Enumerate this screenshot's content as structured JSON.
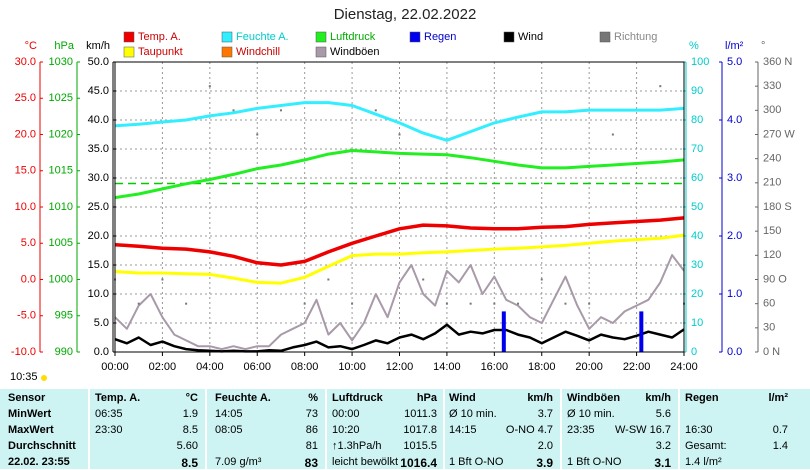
{
  "chart_data": {
    "type": "line",
    "title": "Dienstag, 22.02.2022",
    "xlim": [
      0,
      24
    ],
    "xticks": [
      {
        "value": 0,
        "label": "00:00"
      },
      {
        "value": 2,
        "label": "02:00"
      },
      {
        "value": 4,
        "label": "04:00"
      },
      {
        "value": 6,
        "label": "06:00"
      },
      {
        "value": 8,
        "label": "08:00"
      },
      {
        "value": 10,
        "label": "10:00"
      },
      {
        "value": 12,
        "label": "12:00"
      },
      {
        "value": 14,
        "label": "14:00"
      },
      {
        "value": 16,
        "label": "16:00"
      },
      {
        "value": 18,
        "label": "18:00"
      },
      {
        "value": 20,
        "label": "20:00"
      },
      {
        "value": 22,
        "label": "22:00"
      },
      {
        "value": 24,
        "label": "24:00"
      }
    ],
    "grid": true,
    "grid_axis": "kmh",
    "axes": [
      {
        "id": "temp",
        "side": "left",
        "unit": "°C",
        "color": "#ee0000",
        "lim": [
          -10,
          30
        ],
        "ticks": [
          {
            "value": -10,
            "label": "-10.0"
          },
          {
            "value": -5,
            "label": "-5.0"
          },
          {
            "value": 0,
            "label": "0.0"
          },
          {
            "value": 5,
            "label": "5.0"
          },
          {
            "value": 10,
            "label": "10.0"
          },
          {
            "value": 15,
            "label": "15.0"
          },
          {
            "value": 20,
            "label": "20.0"
          },
          {
            "value": 25,
            "label": "25.0"
          },
          {
            "value": 30,
            "label": "30.0"
          }
        ]
      },
      {
        "id": "hpa",
        "side": "left",
        "unit": "hPa",
        "color": "#00aa00",
        "lim": [
          990,
          1030
        ],
        "ticks": [
          990,
          995,
          1000,
          1005,
          1010,
          1015,
          1020,
          1025,
          1030
        ]
      },
      {
        "id": "kmh",
        "side": "left",
        "unit": "km/h",
        "color": "#000000",
        "lim": [
          0,
          50
        ],
        "ticks": [
          {
            "value": 0,
            "label": "0.0"
          },
          {
            "value": 5,
            "label": "5.0"
          },
          {
            "value": 10,
            "label": "10.0"
          },
          {
            "value": 15,
            "label": "15.0"
          },
          {
            "value": 20,
            "label": "20.0"
          },
          {
            "value": 25,
            "label": "25.0"
          },
          {
            "value": 30,
            "label": "30.0"
          },
          {
            "value": 35,
            "label": "35.0"
          },
          {
            "value": 40,
            "label": "40.0"
          },
          {
            "value": 45,
            "label": "45.0"
          },
          {
            "value": 50,
            "label": "50.0"
          }
        ]
      },
      {
        "id": "pct",
        "side": "right",
        "unit": "%",
        "color": "#00cccc",
        "lim": [
          0,
          100
        ],
        "ticks": [
          0,
          10,
          20,
          30,
          40,
          50,
          60,
          70,
          80,
          90,
          100
        ]
      },
      {
        "id": "rain",
        "side": "right",
        "unit": "l/m²",
        "color": "#0000cc",
        "lim": [
          0,
          5
        ],
        "ticks": [
          {
            "value": 0,
            "label": "0.0"
          },
          {
            "value": 1,
            "label": "1.0"
          },
          {
            "value": 2,
            "label": "2.0"
          },
          {
            "value": 3,
            "label": "3.0"
          },
          {
            "value": 4,
            "label": "4.0"
          },
          {
            "value": 5,
            "label": "5.0"
          }
        ]
      },
      {
        "id": "dir",
        "side": "right",
        "unit": "°",
        "color": "#666666",
        "lim": [
          0,
          360
        ],
        "ticks": [
          {
            "value": 0,
            "label": "0 N"
          },
          30,
          60,
          {
            "value": 90,
            "label": "90 O"
          },
          120,
          150,
          {
            "value": 180,
            "label": "180 S"
          },
          210,
          240,
          {
            "value": 270,
            "label": "270 W"
          },
          300,
          330,
          {
            "value": 360,
            "label": "360 N"
          }
        ]
      }
    ],
    "reference_lines": [
      {
        "axis": "hpa",
        "value": 1013.25,
        "color": "#00cc00"
      }
    ],
    "series": [
      {
        "name": "Temp. A.",
        "color": "#ee0000",
        "label_color": "#cc0000",
        "axis": "temp",
        "style": "line",
        "width": 3.5,
        "x": [
          0,
          1,
          2,
          3,
          4,
          5,
          6,
          7,
          8,
          9,
          10,
          11,
          12,
          13,
          14,
          15,
          16,
          17,
          18,
          19,
          20,
          21,
          22,
          23,
          24
        ],
        "values": [
          4.8,
          4.6,
          4.3,
          4.2,
          3.8,
          3.2,
          2.3,
          2.0,
          2.5,
          3.8,
          5.0,
          6.0,
          7.0,
          7.5,
          7.4,
          7.1,
          7.0,
          7.0,
          7.2,
          7.3,
          7.6,
          7.8,
          8.0,
          8.2,
          8.5
        ]
      },
      {
        "name": "Feuchte A.",
        "color": "#33eeff",
        "label_color": "#00cccc",
        "axis": "pct",
        "style": "line",
        "width": 3,
        "x": [
          0,
          1,
          2,
          3,
          4,
          5,
          6,
          7,
          8,
          9,
          10,
          11,
          12,
          13,
          14,
          15,
          16,
          17,
          18,
          19,
          20,
          21,
          22,
          23,
          24
        ],
        "values": [
          78,
          78.5,
          79.3,
          80,
          81.4,
          82.5,
          84,
          85,
          86,
          86,
          85,
          82,
          79,
          75.5,
          73,
          76,
          79,
          81,
          82.8,
          82.8,
          83.4,
          83.4,
          83.4,
          83.4,
          84
        ]
      },
      {
        "name": "Luftdruck",
        "color": "#22ee22",
        "label_color": "#00aa00",
        "axis": "hpa",
        "style": "line",
        "width": 3,
        "x": [
          0,
          1,
          2,
          3,
          4,
          5,
          6,
          7,
          8,
          9,
          10,
          11,
          12,
          13,
          14,
          15,
          16,
          17,
          18,
          19,
          20,
          21,
          22,
          23,
          24
        ],
        "values": [
          1011.3,
          1011.8,
          1012.5,
          1013.2,
          1013.8,
          1014.5,
          1015.3,
          1015.8,
          1016.5,
          1017.3,
          1017.8,
          1017.6,
          1017.4,
          1017.3,
          1017.2,
          1016.8,
          1016.3,
          1015.8,
          1015.4,
          1015.4,
          1015.6,
          1015.8,
          1016.0,
          1016.2,
          1016.5
        ]
      },
      {
        "name": "Regen",
        "color": "#0000ee",
        "label_color": "#0000cc",
        "axis": "rain",
        "style": "bar",
        "width": 4,
        "x": [
          16.4,
          22.2
        ],
        "values": [
          0.7,
          0.7
        ]
      },
      {
        "name": "Wind",
        "color": "#000000",
        "label_color": "#000000",
        "axis": "kmh",
        "style": "line",
        "width": 2.5,
        "x": [
          0,
          0.5,
          1,
          1.5,
          2,
          2.5,
          3,
          3.5,
          4,
          4.5,
          5,
          5.5,
          6,
          6.5,
          7,
          7.5,
          8,
          8.5,
          9,
          9.5,
          10,
          10.5,
          11,
          11.5,
          12,
          12.5,
          13,
          13.5,
          14,
          14.5,
          15,
          15.5,
          16,
          16.5,
          17,
          17.5,
          18,
          18.5,
          19,
          19.5,
          20,
          20.5,
          21,
          21.5,
          22,
          22.5,
          23,
          23.5,
          24
        ],
        "values": [
          2.2,
          1.5,
          2.5,
          1.2,
          1.8,
          1.0,
          0.5,
          0.3,
          0.2,
          0.1,
          0.2,
          0.1,
          0.1,
          0.3,
          0.2,
          0.8,
          1.2,
          1.8,
          0.8,
          1.0,
          0.5,
          1.2,
          2.0,
          1.5,
          2.5,
          3.0,
          2.2,
          3.2,
          4.7,
          3.0,
          3.5,
          3.2,
          3.8,
          3.8,
          3.0,
          2.5,
          1.5,
          2.5,
          3.5,
          2.8,
          2.0,
          3.0,
          2.5,
          2.2,
          2.8,
          3.5,
          3.0,
          2.5,
          3.9
        ]
      },
      {
        "name": "Richtung",
        "color": "#777777",
        "label_color": "#888888",
        "axis": "dir",
        "style": "dots",
        "width": 2,
        "x": [
          0,
          1,
          2,
          3,
          4,
          5,
          6,
          7,
          8,
          9,
          10,
          11,
          12,
          13,
          14,
          15,
          16,
          17,
          18,
          19,
          20,
          21,
          22,
          23,
          24
        ],
        "values": [
          90,
          60,
          90,
          60,
          330,
          300,
          270,
          300,
          60,
          90,
          60,
          300,
          270,
          90,
          60,
          60,
          60,
          60,
          90,
          60,
          60,
          270,
          300,
          330,
          60
        ]
      },
      {
        "name": "Taupunkt",
        "color": "#ffff00",
        "label_color": "#cc0000",
        "axis": "temp",
        "style": "line",
        "width": 3,
        "x": [
          0,
          1,
          2,
          3,
          4,
          5,
          6,
          7,
          8,
          9,
          10,
          11,
          12,
          13,
          14,
          15,
          16,
          17,
          18,
          19,
          20,
          21,
          22,
          23,
          24
        ],
        "values": [
          1.1,
          0.9,
          0.9,
          0.8,
          0.7,
          0.2,
          -0.4,
          -0.5,
          0.3,
          1.8,
          3.3,
          3.5,
          3.5,
          3.7,
          3.8,
          4.0,
          4.2,
          4.3,
          4.5,
          4.7,
          5.0,
          5.3,
          5.5,
          5.7,
          6.1
        ]
      },
      {
        "name": "Windchill",
        "color": "#ff7700",
        "label_color": "#cc0000",
        "axis": "temp",
        "style": "line",
        "width": 2
      },
      {
        "name": "Windböen",
        "color": "#a89aa8",
        "label_color": "#000000",
        "axis": "kmh",
        "style": "line",
        "width": 2,
        "x": [
          0,
          0.5,
          1,
          1.5,
          2,
          2.5,
          3,
          3.5,
          4,
          4.5,
          5,
          5.5,
          6,
          6.5,
          7,
          7.5,
          8,
          8.5,
          9,
          9.5,
          10,
          10.5,
          11,
          11.5,
          12,
          12.5,
          13,
          13.5,
          14,
          14.5,
          15,
          15.5,
          16,
          16.5,
          17,
          17.5,
          18,
          18.5,
          19,
          19.5,
          20,
          20.5,
          21,
          21.5,
          22,
          22.5,
          23,
          23.5,
          24
        ],
        "values": [
          6,
          4,
          8,
          10,
          6,
          3,
          2,
          1,
          1,
          0.5,
          1,
          0.5,
          1,
          1,
          3,
          4,
          5,
          9,
          3,
          5,
          2,
          5,
          10,
          6,
          12,
          15,
          10,
          8,
          14,
          12,
          15,
          10,
          13,
          9,
          8,
          6,
          5,
          9,
          13,
          8,
          4,
          6,
          5,
          7,
          8,
          9,
          12,
          16.7,
          14
        ]
      }
    ]
  },
  "time": "10:35",
  "table": {
    "header": [
      "Sensor",
      "Temp. A.",
      "°C",
      "Feuchte A.",
      "%",
      "Luftdruck",
      "hPa",
      "Wind",
      "km/h",
      "Windböen",
      "km/h",
      "Regen",
      "l/m²"
    ],
    "rows": [
      [
        "MinWert",
        "06:35",
        "1.9",
        "14:05",
        "73",
        "00:00",
        "1011.3",
        "Ø 10 min.",
        "3.7",
        "Ø 10 min.",
        "5.6",
        null,
        null
      ],
      [
        "MaxWert",
        "23:30",
        "8.5",
        "08:05",
        "86",
        "10:20",
        "1017.8",
        "14:15",
        "O-NO 4.7",
        "23:35",
        "W-SW 16.7",
        "16:30",
        "0.7"
      ],
      [
        "Durchschnitt",
        null,
        "5.60",
        null,
        "81",
        "↑1.3hPa/h",
        "1015.5",
        null,
        "2.0",
        null,
        "3.2",
        "Gesamt:",
        "1.4"
      ],
      [
        "22.02. 23:55",
        null,
        "8.5",
        "7.09 g/m³",
        "83",
        "leicht bewölkt",
        "1016.4",
        "1 Bft O-NO",
        "3.9",
        "1 Bft O-NO",
        "3.1",
        "1.4 l/m²",
        null
      ]
    ]
  }
}
